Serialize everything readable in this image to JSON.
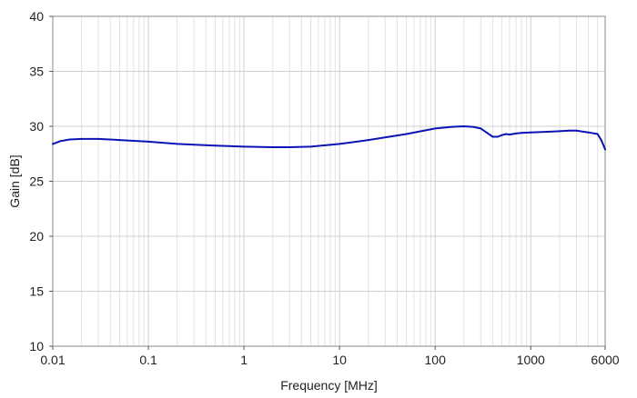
{
  "chart_data": {
    "type": "line",
    "title": "",
    "xlabel": "Frequency [MHz]",
    "ylabel": "Gain [dB]",
    "x_scale": "log",
    "xlim": [
      0.01,
      6000
    ],
    "ylim": [
      10,
      40
    ],
    "grid": true,
    "x_ticks": [
      {
        "value": 0.01,
        "label": "0.01"
      },
      {
        "value": 0.1,
        "label": "0.1"
      },
      {
        "value": 1,
        "label": "1"
      },
      {
        "value": 10,
        "label": "10"
      },
      {
        "value": 100,
        "label": "100"
      },
      {
        "value": 1000,
        "label": "1000"
      },
      {
        "value": 6000,
        "label": "6000"
      }
    ],
    "y_ticks": [
      {
        "value": 10,
        "label": "10"
      },
      {
        "value": 15,
        "label": "15"
      },
      {
        "value": 20,
        "label": "20"
      },
      {
        "value": 25,
        "label": "25"
      },
      {
        "value": 30,
        "label": "30"
      },
      {
        "value": 35,
        "label": "35"
      },
      {
        "value": 40,
        "label": "40"
      }
    ],
    "series": [
      {
        "color": "#0a14b4",
        "x": [
          0.01,
          0.012,
          0.015,
          0.02,
          0.03,
          0.05,
          0.1,
          0.2,
          0.5,
          1,
          2,
          3,
          5,
          10,
          20,
          50,
          100,
          150,
          200,
          250,
          300,
          350,
          400,
          450,
          500,
          550,
          600,
          700,
          800,
          1000,
          1500,
          2000,
          2500,
          3000,
          4000,
          5000,
          5500,
          6000
        ],
        "y": [
          28.4,
          28.65,
          28.8,
          28.85,
          28.85,
          28.75,
          28.6,
          28.4,
          28.25,
          28.15,
          28.1,
          28.1,
          28.15,
          28.4,
          28.75,
          29.3,
          29.8,
          29.95,
          30.0,
          29.95,
          29.8,
          29.4,
          29.05,
          29.05,
          29.2,
          29.3,
          29.25,
          29.35,
          29.4,
          29.45,
          29.5,
          29.55,
          29.6,
          29.6,
          29.45,
          29.3,
          28.7,
          27.9
        ]
      }
    ]
  }
}
